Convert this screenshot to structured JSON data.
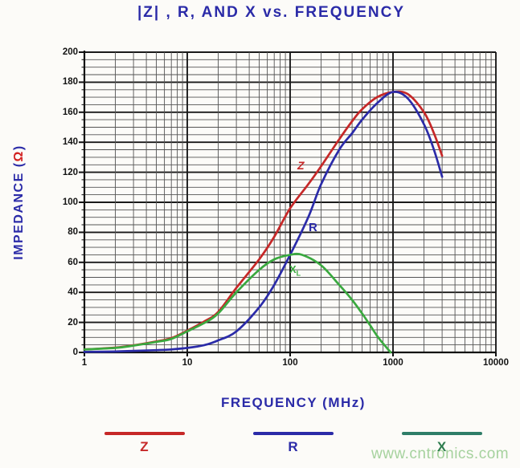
{
  "title": "|Z| , R, AND X vs. FREQUENCY",
  "watermark": "www.cntronics.com",
  "y_axis": {
    "label_prefix": "IMPEDANCE (",
    "label_omega": "Ω",
    "label_suffix": ")",
    "tick_labels": [
      "0",
      "20",
      "40",
      "60",
      "80",
      "100",
      "120",
      "140",
      "160",
      "180",
      "200"
    ],
    "tick_values": [
      0,
      20,
      40,
      60,
      80,
      100,
      120,
      140,
      160,
      180,
      200
    ]
  },
  "x_axis": {
    "label": "FREQUENCY (MHz)",
    "scale": "log",
    "tick_labels": [
      "1",
      "10",
      "100",
      "1000",
      "10000"
    ],
    "tick_values": [
      1,
      10,
      100,
      1000,
      10000
    ]
  },
  "plot_labels": {
    "z": "Z",
    "r": "R",
    "x": "X",
    "x_sub": "L"
  },
  "legend": {
    "items": [
      {
        "label": "Z",
        "line_color": "#c62828",
        "label_color": "#c62828"
      },
      {
        "label": "R",
        "line_color": "#2b2ba8",
        "label_color": "#2b2ba8"
      },
      {
        "label": "X",
        "line_color": "#2f7d68",
        "label_color": "#2f7d4f"
      }
    ]
  },
  "colors": {
    "text_blue": "#2b2ba8",
    "omega_red": "#d22020",
    "tick_text": "#141414",
    "grid_minor": "#545454",
    "grid_major": "#1a1a1a",
    "axis": "#111111",
    "watermark": "#a6d29e",
    "background": "#fcfbf8"
  },
  "chart_data": {
    "type": "line",
    "title": "|Z| , R, AND X vs. FREQUENCY",
    "xlabel": "FREQUENCY (MHz)",
    "ylabel": "IMPEDANCE (Ω)",
    "x_scale": "log",
    "xlim": [
      1,
      10000
    ],
    "ylim": [
      0,
      200
    ],
    "y_major_step": 20,
    "y_minor_step": 5,
    "grid": true,
    "legend_position": "bottom",
    "series": [
      {
        "name": "Z",
        "color": "#c62828",
        "x": [
          1,
          2,
          3,
          5,
          7,
          10,
          15,
          20,
          30,
          50,
          70,
          100,
          150,
          200,
          300,
          400,
          500,
          700,
          1000,
          1400,
          2000,
          2500,
          3000
        ],
        "values": [
          2,
          3.2,
          4.7,
          7.3,
          9.5,
          14.5,
          21,
          27,
          43,
          62,
          77,
          96,
          112,
          124,
          142,
          154,
          162,
          170,
          173.5,
          172,
          160,
          146,
          131
        ]
      },
      {
        "name": "R",
        "color": "#2b2ba8",
        "x": [
          1,
          2,
          3,
          5,
          7,
          10,
          15,
          20,
          30,
          50,
          70,
          100,
          150,
          200,
          300,
          400,
          500,
          700,
          1000,
          1400,
          2000,
          2500,
          3000
        ],
        "values": [
          0.4,
          0.6,
          1,
          1.5,
          2,
          3,
          5,
          8,
          14,
          30,
          45,
          65,
          90,
          112,
          135,
          146,
          155,
          166,
          173.5,
          169,
          152,
          135,
          117
        ]
      },
      {
        "name": "X",
        "color": "#3aa93f",
        "x": [
          1,
          2,
          3,
          5,
          7,
          10,
          15,
          20,
          30,
          50,
          70,
          100,
          130,
          200,
          300,
          400,
          500,
          600,
          700,
          800,
          950
        ],
        "values": [
          2,
          3,
          4.5,
          7,
          9,
          14,
          20,
          26,
          40,
          55,
          62,
          65,
          65,
          58,
          45,
          35,
          26,
          18,
          11,
          6,
          0
        ]
      }
    ]
  }
}
